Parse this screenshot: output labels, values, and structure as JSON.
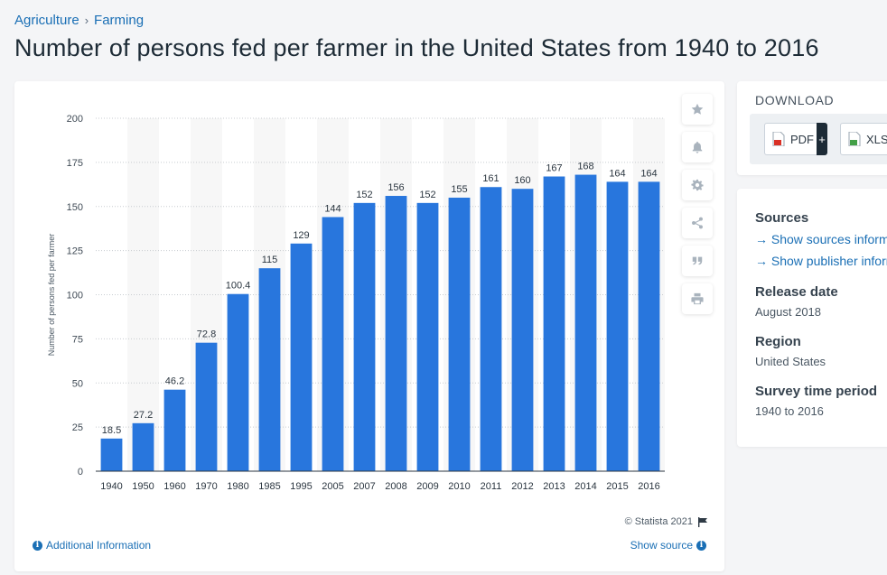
{
  "breadcrumb": {
    "items": [
      "Agriculture",
      "Farming"
    ],
    "separator": "›"
  },
  "title": "Number of persons fed per farmer in the United States from 1940 to 2016",
  "chart_data": {
    "type": "bar",
    "title": "Number of persons fed per farmer in the United States from 1940 to 2016",
    "categories": [
      "1940",
      "1950",
      "1960",
      "1970",
      "1980",
      "1985",
      "1995",
      "2005",
      "2007",
      "2008",
      "2009",
      "2010",
      "2011",
      "2012",
      "2013",
      "2014",
      "2015",
      "2016"
    ],
    "values": [
      18.5,
      27.2,
      46.2,
      72.8,
      100.4,
      115,
      129,
      144,
      152,
      156,
      152,
      155,
      161,
      160,
      167,
      168,
      164,
      164
    ],
    "value_labels": [
      "18.5",
      "27.2",
      "46.2",
      "72.8",
      "100.4",
      "115",
      "129",
      "144",
      "152",
      "156",
      "152",
      "155",
      "161",
      "160",
      "167",
      "168",
      "164",
      "164"
    ],
    "xlabel": "",
    "ylabel": "Number of persons fed per farmer",
    "ylim": [
      0,
      200
    ],
    "yticks": [
      "0",
      "25",
      "50",
      "75",
      "100",
      "125",
      "150",
      "175",
      "200"
    ],
    "grid": true,
    "bar_color": "#2876dd"
  },
  "toolbar": {
    "icons": [
      "star-icon",
      "bell-icon",
      "gear-icon",
      "share-icon",
      "quote-icon",
      "print-icon"
    ]
  },
  "footer": {
    "credit": "© Statista 2021",
    "additional_info": "Additional Information",
    "show_source": "Show source"
  },
  "download": {
    "title": "DOWNLOAD",
    "pdf_label": "PDF",
    "pdf_plus": "+",
    "xls_label": "XLS"
  },
  "meta": {
    "sources_title": "Sources",
    "sources_links": [
      "Show sources information",
      "Show publisher information"
    ],
    "link_arrow": "→",
    "release_title": "Release date",
    "release_value": "August 2018",
    "region_title": "Region",
    "region_value": "United States",
    "survey_title": "Survey time period",
    "survey_value": "1940 to 2016"
  },
  "colors": {
    "accent": "#1a6fb5",
    "bar": "#2876dd",
    "text": "#1d2b36"
  }
}
